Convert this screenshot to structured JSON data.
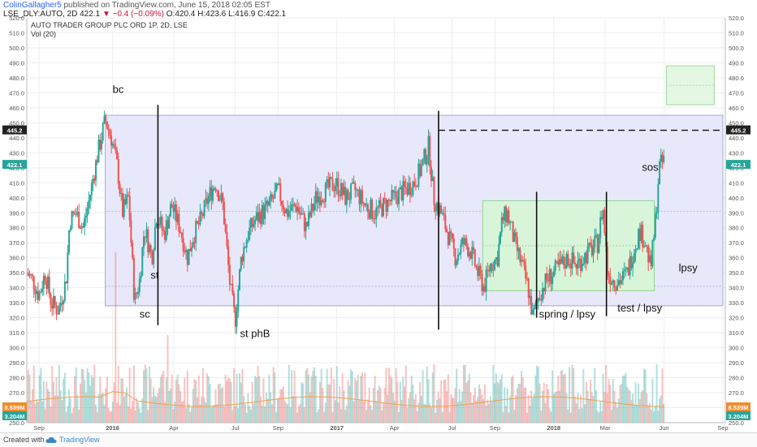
{
  "header": {
    "author": "ColinGallagher5",
    "published": " published on TradingView.com, June 15, 2018 02:05 EST",
    "symbol": "LSE_DLY:AUTO, 2D",
    "last": "422.1",
    "change": "▼ −0.4 (−0.09%)",
    "ohlc": "O:420.4 H:423.6 L:416.9 C:422.1"
  },
  "chart_legend": {
    "title": "AUTO TRADER GROUP PLC ORD 1P, 2D, LSE",
    "vol": "Vol (20)"
  },
  "footer": {
    "made_with": "Created with",
    "brand": "TradingView"
  },
  "colors": {
    "up": "#26a69a",
    "down": "#ef5350",
    "range_box": "#e8e8fb",
    "green_box": "#d9f5d9",
    "grid": "#eeeeee"
  },
  "chart_data": {
    "type": "candlestick",
    "y_axis": {
      "min": 250,
      "max": 520,
      "ticks": [
        520,
        510,
        500,
        490,
        480,
        470,
        460,
        450,
        440,
        430,
        420,
        410,
        400,
        390,
        380,
        370,
        360,
        350,
        340,
        330,
        320,
        310,
        300,
        290,
        280,
        270,
        260,
        250
      ]
    },
    "x_ticks": [
      {
        "label": "Sep",
        "t": 1
      },
      {
        "label": "2016",
        "t": 7
      },
      {
        "label": "Apr",
        "t": 12
      },
      {
        "label": "Jul",
        "t": 17
      },
      {
        "label": "Sep",
        "t": 20.5
      },
      {
        "label": "2017",
        "t": 25.3
      },
      {
        "label": "Apr",
        "t": 30
      },
      {
        "label": "Jul",
        "t": 34.7
      },
      {
        "label": "Sep",
        "t": 38.2
      },
      {
        "label": "2018",
        "t": 43
      },
      {
        "label": "Mar",
        "t": 47.2
      },
      {
        "label": "Jun",
        "t": 52
      },
      {
        "label": "Sep",
        "t": 56.8
      }
    ],
    "price_labels": {
      "left_top": "445.2",
      "left_mid": "422.1",
      "right": [
        "445.2",
        "422.1"
      ],
      "vol_left": [
        "8.539M",
        "3.204M"
      ],
      "vol_right": [
        "8.539M",
        "3.204M"
      ]
    },
    "waypoints": [
      [
        0,
        350
      ],
      [
        0.5,
        345
      ],
      [
        1,
        335
      ],
      [
        1.5,
        350
      ],
      [
        2,
        330
      ],
      [
        2.6,
        325
      ],
      [
        3.2,
        345
      ],
      [
        3.5,
        385
      ],
      [
        4,
        390
      ],
      [
        4.6,
        380
      ],
      [
        5,
        395
      ],
      [
        5.8,
        430
      ],
      [
        6.4,
        452
      ],
      [
        6.9,
        440
      ],
      [
        7.4,
        420
      ],
      [
        7.8,
        390
      ],
      [
        8.3,
        400
      ],
      [
        8.8,
        330
      ],
      [
        9.2,
        345
      ],
      [
        9.6,
        380
      ],
      [
        10.2,
        360
      ],
      [
        10.6,
        390
      ],
      [
        11.2,
        375
      ],
      [
        11.8,
        395
      ],
      [
        12.5,
        380
      ],
      [
        13.1,
        360
      ],
      [
        13.6,
        375
      ],
      [
        14.2,
        385
      ],
      [
        14.8,
        400
      ],
      [
        15.4,
        410
      ],
      [
        16,
        395
      ],
      [
        16.6,
        340
      ],
      [
        17,
        318
      ],
      [
        17.5,
        360
      ],
      [
        18,
        375
      ],
      [
        18.6,
        385
      ],
      [
        19.2,
        390
      ],
      [
        19.8,
        395
      ],
      [
        20.5,
        405
      ],
      [
        21.2,
        390
      ],
      [
        22,
        395
      ],
      [
        22.8,
        380
      ],
      [
        23.6,
        400
      ],
      [
        24.4,
        405
      ],
      [
        25.2,
        410
      ],
      [
        26,
        400
      ],
      [
        26.8,
        405
      ],
      [
        27.6,
        395
      ],
      [
        28.4,
        390
      ],
      [
        29.2,
        395
      ],
      [
        30,
        400
      ],
      [
        30.8,
        405
      ],
      [
        31.6,
        410
      ],
      [
        32.2,
        420
      ],
      [
        32.8,
        435
      ],
      [
        33.2,
        400
      ],
      [
        33.8,
        390
      ],
      [
        34.4,
        375
      ],
      [
        35,
        360
      ],
      [
        35.6,
        370
      ],
      [
        36.2,
        365
      ],
      [
        36.8,
        350
      ],
      [
        37.3,
        340
      ],
      [
        37.8,
        355
      ],
      [
        38.4,
        360
      ],
      [
        38.8,
        385
      ],
      [
        39.2,
        390
      ],
      [
        39.8,
        370
      ],
      [
        40.4,
        355
      ],
      [
        40.9,
        340
      ],
      [
        41.3,
        320
      ],
      [
        41.8,
        335
      ],
      [
        42.4,
        345
      ],
      [
        43,
        350
      ],
      [
        43.6,
        355
      ],
      [
        44.2,
        360
      ],
      [
        44.8,
        355
      ],
      [
        45.4,
        360
      ],
      [
        46,
        365
      ],
      [
        46.6,
        370
      ],
      [
        47,
        395
      ],
      [
        47.4,
        350
      ],
      [
        47.9,
        345
      ],
      [
        48.5,
        345
      ],
      [
        49,
        350
      ],
      [
        49.5,
        365
      ],
      [
        50,
        378
      ],
      [
        50.5,
        370
      ],
      [
        50.9,
        352
      ],
      [
        51.3,
        385
      ],
      [
        51.6,
        420
      ],
      [
        52,
        425
      ]
    ],
    "volume_baseline_m": 3.204,
    "volume_spikes": [
      [
        7.2,
        35
      ],
      [
        11,
        10
      ],
      [
        11.5,
        18
      ],
      [
        33.2,
        12
      ],
      [
        40.2,
        8
      ],
      [
        47,
        10
      ],
      [
        51.4,
        12
      ]
    ],
    "annotations": {
      "labels": [
        {
          "text": "bc",
          "t": 7.0,
          "price": 470
        },
        {
          "text": "sc",
          "t": 9.2,
          "price": 320
        },
        {
          "text": "st",
          "t": 10.1,
          "price": 346
        },
        {
          "text": "st phB",
          "t": 17.4,
          "price": 307
        },
        {
          "text": "spring / lpsy",
          "t": 41.8,
          "price": 320
        },
        {
          "text": "test / lpsy",
          "t": 48.2,
          "price": 324
        },
        {
          "text": "sos",
          "t": 50.2,
          "price": 418
        },
        {
          "text": "lpsy",
          "t": 53.2,
          "price": 351
        }
      ],
      "vertical_lines": [
        {
          "t": 10.7,
          "top": 462,
          "bottom": 315
        },
        {
          "t": 33.6,
          "top": 458,
          "bottom": 312
        },
        {
          "t": 41.6,
          "top": 404,
          "bottom": 320
        },
        {
          "t": 47.3,
          "top": 404,
          "bottom": 321
        }
      ],
      "dashed_line": {
        "t0": 33.6,
        "t1": 56.8,
        "price": 445
      },
      "range_box": {
        "t0": 6.4,
        "t1": 56.8,
        "top": 455,
        "bottom": 328,
        "inner_lines": [
          391,
          341,
          328
        ]
      },
      "green_box": {
        "t0": 37.2,
        "t1": 51.2,
        "top": 398,
        "bottom": 338,
        "inner_lines": [
          368
        ]
      },
      "target_box": {
        "t0": 52.2,
        "t1": 56.1,
        "top": 488,
        "bottom": 462,
        "inner_lines": [
          475
        ]
      }
    }
  }
}
